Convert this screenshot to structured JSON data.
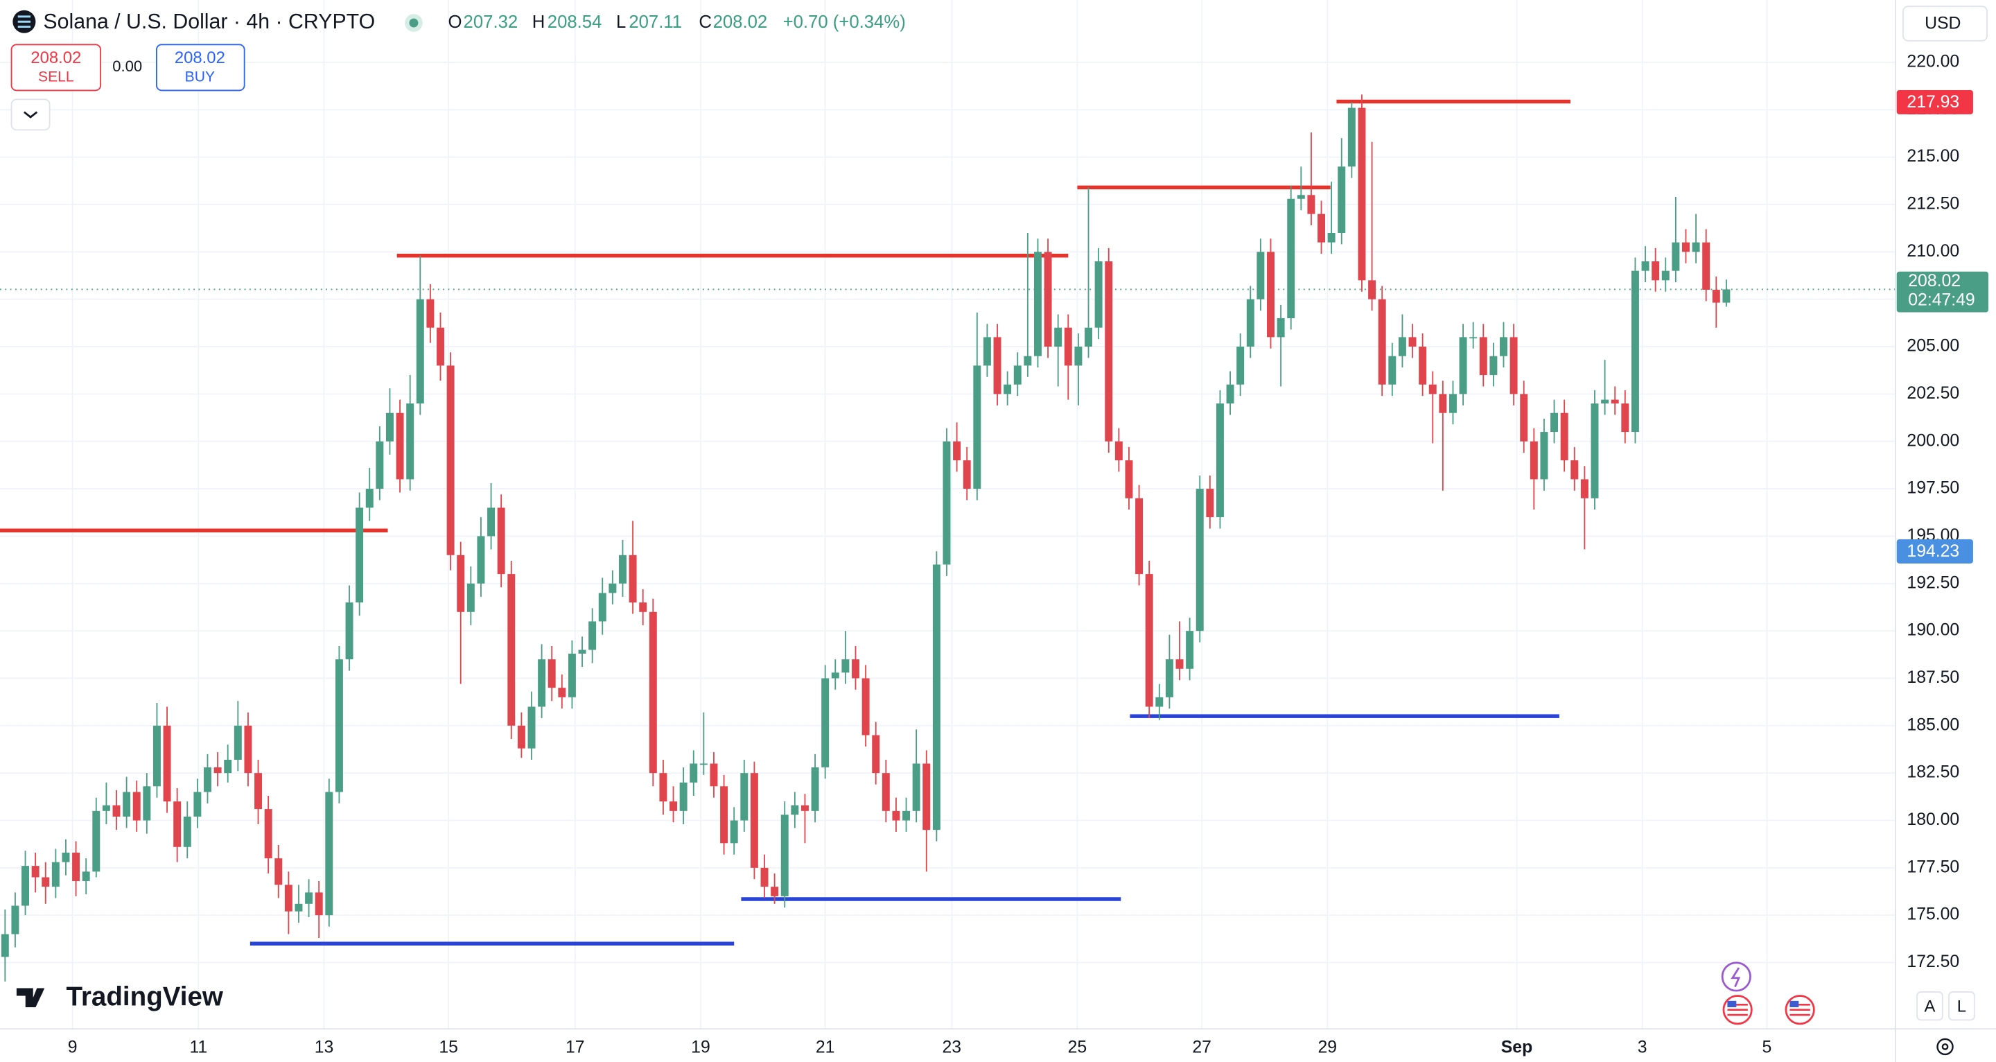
{
  "header": {
    "symbol": "Solana / U.S. Dollar · 4h · CRYPTO",
    "o": "O",
    "h": "H",
    "l": "L",
    "c": "C",
    "change": "+0.70 (+0.34%)"
  },
  "trade": {
    "sell_price": "208.02",
    "sell": "SELL",
    "spread": "0.00",
    "buy_price": "208.02",
    "buy": "BUY"
  },
  "currency": "USD",
  "brand": "TradingView",
  "scale_buttons": [
    "A",
    "L"
  ],
  "chart_data": {
    "type": "candlestick",
    "up_color": "#4b9e86",
    "down_color": "#e0454e",
    "grid": true,
    "xlim": [
      -0.5,
      186.7
    ],
    "ylim": [
      169.0,
      223.29
    ],
    "xticks": [
      {
        "value": 6.66,
        "label": "9"
      },
      {
        "value": 19.1,
        "label": "11"
      },
      {
        "value": 31.5,
        "label": "13"
      },
      {
        "value": 43.8,
        "label": "15"
      },
      {
        "value": 56.3,
        "label": "17"
      },
      {
        "value": 68.7,
        "label": "19"
      },
      {
        "value": 81.0,
        "label": "21"
      },
      {
        "value": 93.5,
        "label": "23"
      },
      {
        "value": 105.9,
        "label": "25"
      },
      {
        "value": 118.2,
        "label": "27"
      },
      {
        "value": 130.6,
        "label": "29"
      },
      {
        "value": 149.3,
        "label": "Sep"
      },
      {
        "value": 161.7,
        "label": "3"
      },
      {
        "value": 174.0,
        "label": "5"
      }
    ],
    "yticks": [
      {
        "value": 172.5,
        "label": "172.50"
      },
      {
        "value": 175,
        "label": "175.00"
      },
      {
        "value": 177.5,
        "label": "177.50"
      },
      {
        "value": 180,
        "label": "180.00"
      },
      {
        "value": 182.5,
        "label": "182.50"
      },
      {
        "value": 185,
        "label": "185.00"
      },
      {
        "value": 187.5,
        "label": "187.50"
      },
      {
        "value": 190,
        "label": "190.00"
      },
      {
        "value": 192.5,
        "label": "192.50"
      },
      {
        "value": 195,
        "label": "195.00"
      },
      {
        "value": 197.5,
        "label": "197.50"
      },
      {
        "value": 200,
        "label": "200.00"
      },
      {
        "value": 202.5,
        "label": "202.50"
      },
      {
        "value": 205,
        "label": "205.00"
      },
      {
        "value": 207.5,
        "label": "207.50"
      },
      {
        "value": 210,
        "label": "210.00"
      },
      {
        "value": 212.5,
        "label": "212.50"
      },
      {
        "value": 215,
        "label": "215.00"
      },
      {
        "value": 217.5,
        "label": "217.50"
      },
      {
        "value": 220,
        "label": "220.00"
      }
    ],
    "levels": [
      {
        "value": 195.3,
        "x": [
          -0.5,
          37.8
        ],
        "color": "#e3332b"
      },
      {
        "value": 209.8,
        "x": [
          38.7,
          105.0
        ],
        "color": "#e3332b"
      },
      {
        "value": 213.4,
        "x": [
          105.9,
          130.9
        ],
        "color": "#e3332b"
      },
      {
        "value": 217.93,
        "x": [
          131.5,
          154.6
        ],
        "color": "#e3332b"
      },
      {
        "value": 185.5,
        "x": [
          111.1,
          153.5
        ],
        "color": "#2943d6"
      },
      {
        "value": 175.85,
        "x": [
          72.7,
          110.2
        ],
        "color": "#2943d6"
      },
      {
        "value": 173.5,
        "x": [
          24.2,
          72.0
        ],
        "color": "#2943d6"
      }
    ],
    "price_labels": [
      {
        "value": 217.93,
        "color": "#f23645"
      },
      {
        "value": 194.23,
        "color": "#4a90e2"
      }
    ],
    "countdown": "02:47:49",
    "ohlc": [
      [
        172.8,
        175.3,
        171.5,
        174.0
      ],
      [
        174.0,
        176.2,
        173.3,
        175.5
      ],
      [
        175.5,
        178.4,
        175.0,
        177.6
      ],
      [
        177.6,
        178.3,
        176.2,
        177.0
      ],
      [
        177.0,
        177.8,
        175.6,
        176.5
      ],
      [
        176.5,
        178.5,
        175.9,
        177.8
      ],
      [
        177.8,
        179.0,
        177.1,
        178.3
      ],
      [
        178.3,
        178.9,
        176.0,
        176.8
      ],
      [
        176.8,
        178.0,
        176.1,
        177.3
      ],
      [
        177.3,
        181.2,
        177.0,
        180.5
      ],
      [
        180.5,
        182.0,
        179.8,
        180.8
      ],
      [
        180.8,
        181.6,
        179.5,
        180.2
      ],
      [
        180.2,
        182.3,
        179.6,
        181.5
      ],
      [
        181.5,
        182.1,
        179.4,
        180.0
      ],
      [
        180.0,
        182.5,
        179.3,
        181.8
      ],
      [
        181.8,
        186.2,
        181.2,
        185.0
      ],
      [
        185.0,
        186.0,
        180.4,
        181.0
      ],
      [
        181.0,
        181.7,
        177.8,
        178.6
      ],
      [
        178.6,
        181.0,
        178.0,
        180.2
      ],
      [
        180.2,
        182.2,
        179.6,
        181.5
      ],
      [
        181.5,
        183.5,
        180.9,
        182.8
      ],
      [
        182.8,
        183.6,
        181.8,
        182.5
      ],
      [
        182.5,
        184.0,
        182.0,
        183.2
      ],
      [
        183.2,
        186.3,
        182.6,
        185.0
      ],
      [
        185.0,
        185.7,
        181.8,
        182.5
      ],
      [
        182.5,
        183.2,
        179.8,
        180.6
      ],
      [
        180.6,
        181.3,
        177.2,
        178.0
      ],
      [
        178.0,
        178.7,
        175.9,
        176.6
      ],
      [
        176.6,
        177.3,
        174.0,
        175.2
      ],
      [
        175.2,
        176.6,
        174.6,
        175.6
      ],
      [
        175.6,
        176.9,
        174.9,
        176.2
      ],
      [
        176.2,
        176.8,
        173.8,
        175.0
      ],
      [
        175.0,
        182.2,
        174.4,
        181.5
      ],
      [
        181.5,
        189.2,
        180.9,
        188.5
      ],
      [
        188.5,
        192.4,
        187.9,
        191.5
      ],
      [
        191.5,
        197.3,
        190.8,
        196.5
      ],
      [
        196.5,
        198.6,
        195.8,
        197.5
      ],
      [
        197.5,
        200.8,
        196.9,
        200.0
      ],
      [
        200.0,
        202.8,
        199.3,
        201.5
      ],
      [
        201.5,
        202.2,
        197.3,
        198.0
      ],
      [
        198.0,
        203.5,
        197.4,
        202.0
      ],
      [
        202.0,
        209.8,
        201.4,
        207.5
      ],
      [
        207.5,
        208.3,
        205.2,
        206.0
      ],
      [
        206.0,
        206.8,
        203.2,
        204.0
      ],
      [
        204.0,
        204.7,
        193.2,
        194.0
      ],
      [
        194.0,
        194.7,
        187.2,
        191.0
      ],
      [
        191.0,
        193.4,
        190.3,
        192.5
      ],
      [
        192.5,
        196.0,
        191.8,
        195.0
      ],
      [
        195.0,
        197.8,
        194.3,
        196.5
      ],
      [
        196.5,
        197.2,
        192.3,
        193.0
      ],
      [
        193.0,
        193.7,
        184.3,
        185.0
      ],
      [
        185.0,
        185.7,
        183.3,
        183.8
      ],
      [
        183.8,
        186.8,
        183.2,
        186.0
      ],
      [
        186.0,
        189.3,
        185.4,
        188.5
      ],
      [
        188.5,
        189.2,
        186.3,
        187.0
      ],
      [
        187.0,
        187.7,
        185.9,
        186.5
      ],
      [
        186.5,
        189.5,
        185.9,
        188.8
      ],
      [
        188.8,
        189.7,
        188.1,
        189.0
      ],
      [
        189.0,
        191.2,
        188.3,
        190.5
      ],
      [
        190.5,
        192.8,
        189.8,
        192.0
      ],
      [
        192.0,
        193.2,
        191.4,
        192.5
      ],
      [
        192.5,
        194.8,
        191.8,
        194.0
      ],
      [
        194.0,
        195.8,
        190.9,
        191.5
      ],
      [
        191.5,
        192.2,
        190.3,
        191.0
      ],
      [
        191.0,
        191.7,
        181.8,
        182.5
      ],
      [
        182.5,
        183.2,
        180.3,
        181.0
      ],
      [
        181.0,
        181.8,
        179.9,
        180.5
      ],
      [
        180.5,
        182.8,
        179.8,
        182.0
      ],
      [
        182.0,
        183.7,
        181.3,
        183.0
      ],
      [
        183.0,
        185.7,
        182.4,
        183.0
      ],
      [
        183.0,
        183.6,
        181.2,
        181.8
      ],
      [
        181.8,
        182.4,
        178.2,
        178.8
      ],
      [
        178.8,
        180.7,
        178.2,
        180.0
      ],
      [
        180.0,
        183.2,
        179.4,
        182.5
      ],
      [
        182.5,
        183.1,
        176.9,
        177.5
      ],
      [
        177.5,
        178.2,
        175.9,
        176.5
      ],
      [
        176.5,
        177.2,
        175.6,
        176.0
      ],
      [
        176.0,
        181.0,
        175.4,
        180.3
      ],
      [
        180.3,
        181.5,
        179.6,
        180.8
      ],
      [
        180.8,
        181.4,
        178.8,
        180.5
      ],
      [
        180.5,
        183.5,
        179.9,
        182.8
      ],
      [
        182.8,
        188.2,
        182.2,
        187.5
      ],
      [
        187.5,
        188.5,
        186.9,
        187.8
      ],
      [
        187.8,
        190.0,
        187.2,
        188.5
      ],
      [
        188.5,
        189.2,
        186.9,
        187.5
      ],
      [
        187.5,
        188.2,
        183.9,
        184.5
      ],
      [
        184.5,
        185.2,
        181.9,
        182.5
      ],
      [
        182.5,
        183.2,
        179.9,
        180.5
      ],
      [
        180.5,
        181.2,
        179.4,
        180.0
      ],
      [
        180.0,
        181.2,
        179.4,
        180.5
      ],
      [
        180.5,
        184.8,
        179.9,
        183.0
      ],
      [
        183.0,
        183.7,
        177.3,
        179.5
      ],
      [
        179.5,
        194.2,
        178.9,
        193.5
      ],
      [
        193.5,
        200.7,
        192.9,
        200.0
      ],
      [
        200.0,
        201.0,
        198.4,
        199.0
      ],
      [
        199.0,
        199.7,
        196.9,
        197.5
      ],
      [
        197.5,
        206.8,
        196.9,
        204.0
      ],
      [
        204.0,
        206.2,
        203.4,
        205.5
      ],
      [
        205.5,
        206.2,
        201.9,
        202.5
      ],
      [
        202.5,
        203.7,
        201.9,
        203.0
      ],
      [
        203.0,
        204.7,
        202.4,
        204.0
      ],
      [
        204.0,
        211.0,
        203.4,
        204.5
      ],
      [
        204.5,
        210.7,
        203.9,
        210.0
      ],
      [
        210.0,
        210.7,
        204.4,
        205.0
      ],
      [
        205.0,
        206.7,
        202.9,
        206.0
      ],
      [
        206.0,
        206.7,
        202.2,
        204.0
      ],
      [
        204.0,
        205.7,
        201.9,
        205.0
      ],
      [
        205.0,
        213.4,
        204.4,
        206.0
      ],
      [
        206.0,
        210.2,
        205.4,
        209.5
      ],
      [
        209.5,
        210.2,
        199.4,
        200.0
      ],
      [
        200.0,
        200.7,
        198.4,
        199.0
      ],
      [
        199.0,
        199.7,
        196.4,
        197.0
      ],
      [
        197.0,
        197.7,
        192.4,
        193.0
      ],
      [
        193.0,
        193.7,
        185.4,
        186.0
      ],
      [
        186.0,
        187.2,
        185.3,
        186.5
      ],
      [
        186.5,
        189.8,
        185.9,
        188.5
      ],
      [
        188.5,
        190.5,
        187.4,
        188.0
      ],
      [
        188.0,
        190.7,
        187.4,
        190.0
      ],
      [
        190.0,
        198.2,
        189.4,
        197.5
      ],
      [
        197.5,
        198.2,
        195.4,
        196.0
      ],
      [
        196.0,
        202.7,
        195.4,
        202.0
      ],
      [
        202.0,
        203.7,
        201.4,
        203.0
      ],
      [
        203.0,
        205.7,
        202.4,
        205.0
      ],
      [
        205.0,
        208.2,
        204.4,
        207.5
      ],
      [
        207.5,
        210.7,
        206.9,
        210.0
      ],
      [
        210.0,
        210.7,
        204.9,
        205.5
      ],
      [
        205.5,
        207.2,
        202.9,
        206.5
      ],
      [
        206.5,
        213.5,
        205.9,
        212.8
      ],
      [
        212.8,
        214.5,
        212.2,
        213.0
      ],
      [
        213.0,
        216.3,
        211.4,
        212.0
      ],
      [
        212.0,
        212.7,
        209.9,
        210.5
      ],
      [
        210.5,
        213.7,
        209.9,
        211.0
      ],
      [
        211.0,
        216.0,
        210.4,
        214.5
      ],
      [
        214.5,
        217.9,
        213.9,
        217.6
      ],
      [
        217.6,
        218.3,
        207.9,
        208.5
      ],
      [
        208.5,
        215.8,
        206.9,
        207.5
      ],
      [
        207.5,
        208.2,
        202.4,
        203.0
      ],
      [
        203.0,
        205.2,
        202.4,
        204.5
      ],
      [
        204.5,
        206.7,
        203.9,
        205.5
      ],
      [
        205.5,
        206.2,
        204.4,
        205.0
      ],
      [
        205.0,
        205.7,
        202.4,
        203.0
      ],
      [
        203.0,
        203.7,
        199.9,
        202.5
      ],
      [
        202.5,
        203.2,
        197.4,
        201.5
      ],
      [
        201.5,
        203.2,
        200.9,
        202.5
      ],
      [
        202.5,
        206.2,
        201.9,
        205.5
      ],
      [
        205.5,
        206.3,
        204.9,
        205.5
      ],
      [
        205.5,
        206.2,
        202.9,
        203.5
      ],
      [
        203.5,
        205.2,
        202.9,
        204.5
      ],
      [
        204.5,
        206.3,
        203.9,
        205.5
      ],
      [
        205.5,
        206.2,
        201.9,
        202.5
      ],
      [
        202.5,
        203.2,
        199.4,
        200.0
      ],
      [
        200.0,
        200.7,
        196.4,
        198.0
      ],
      [
        198.0,
        201.2,
        197.4,
        200.5
      ],
      [
        200.5,
        202.2,
        199.9,
        201.5
      ],
      [
        201.5,
        202.2,
        198.4,
        199.0
      ],
      [
        199.0,
        199.7,
        197.4,
        198.0
      ],
      [
        198.0,
        198.7,
        194.3,
        197.0
      ],
      [
        197.0,
        202.7,
        196.4,
        202.0
      ],
      [
        202.0,
        204.3,
        201.4,
        202.2
      ],
      [
        202.2,
        202.9,
        201.4,
        202.0
      ],
      [
        202.0,
        202.7,
        199.9,
        200.5
      ],
      [
        200.5,
        209.7,
        199.9,
        209.0
      ],
      [
        209.0,
        210.3,
        208.4,
        209.5
      ],
      [
        209.5,
        210.2,
        207.9,
        208.5
      ],
      [
        208.5,
        209.7,
        207.9,
        209.0
      ],
      [
        209.0,
        212.9,
        208.4,
        210.5
      ],
      [
        210.5,
        211.2,
        209.4,
        210.0
      ],
      [
        210.0,
        212.0,
        209.4,
        210.5
      ],
      [
        210.5,
        211.2,
        207.4,
        208.0
      ],
      [
        208.0,
        208.7,
        206.0,
        207.32
      ],
      [
        207.32,
        208.54,
        207.11,
        208.02
      ]
    ]
  }
}
